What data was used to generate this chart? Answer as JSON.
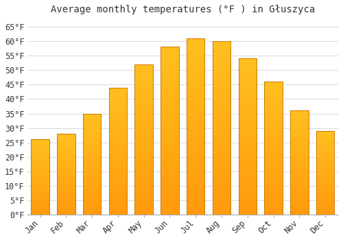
{
  "title": "Average monthly temperatures (°F ) in Głuszyca",
  "months": [
    "Jan",
    "Feb",
    "Mar",
    "Apr",
    "May",
    "Jun",
    "Jul",
    "Aug",
    "Sep",
    "Oct",
    "Nov",
    "Dec"
  ],
  "values": [
    26,
    28,
    35,
    44,
    52,
    58,
    61,
    60,
    54,
    46,
    36,
    29
  ],
  "bar_color_top": "#FFC020",
  "bar_color_bottom": "#FF9500",
  "bar_edge_color": "#CC7700",
  "ylim": [
    0,
    68
  ],
  "yticks": [
    0,
    5,
    10,
    15,
    20,
    25,
    30,
    35,
    40,
    45,
    50,
    55,
    60,
    65
  ],
  "background_color": "#ffffff",
  "grid_color": "#dddddd",
  "title_fontsize": 10,
  "tick_fontsize": 8.5
}
